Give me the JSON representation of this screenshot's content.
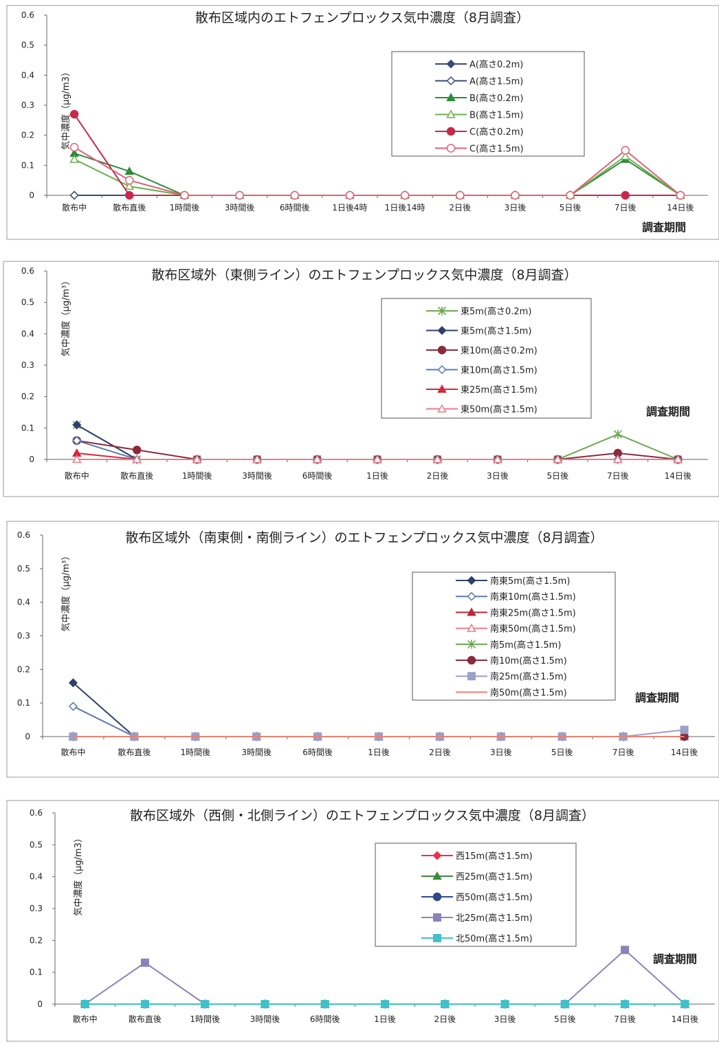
{
  "chart_data": [
    {
      "type": "line",
      "title": "散布区域内のエトフェンプロックス気中濃度（8月調査）",
      "ylabel": "気中濃度（μg/m3）",
      "xlabel": "調査期間",
      "ylim": [
        0,
        0.6
      ],
      "yticks": [
        "0",
        "0.1",
        "0.2",
        "0.3",
        "0.4",
        "0.5",
        "0.6"
      ],
      "categories": [
        "散布中",
        "散布直後",
        "1時間後",
        "3時間後",
        "6時間後",
        "1日後4時",
        "1日後14時",
        "2日後",
        "3日後",
        "5日後",
        "7日後",
        "14日後"
      ],
      "legend": "upper-right box",
      "series": [
        {
          "name": "A(高さ0.2m)",
          "color": "#3a4a7a",
          "marker": "diamond-filled",
          "values": [
            0,
            0,
            0,
            0,
            0,
            0,
            0,
            0,
            0,
            0,
            0,
            0
          ]
        },
        {
          "name": "A(高さ1.5m)",
          "color": "#3a4a7a",
          "marker": "diamond-open",
          "values": [
            0,
            0,
            0,
            0,
            0,
            0,
            0,
            0,
            0,
            0,
            0,
            0
          ]
        },
        {
          "name": "B(高さ0.2m)",
          "color": "#2e8b3a",
          "marker": "triangle-filled",
          "values": [
            0.14,
            0.08,
            0,
            0,
            0,
            0,
            0,
            0,
            0,
            0,
            0.12,
            0
          ]
        },
        {
          "name": "B(高さ1.5m)",
          "color": "#6ab04c",
          "marker": "triangle-open",
          "values": [
            0.12,
            0.03,
            0,
            0,
            0,
            0,
            0,
            0,
            0,
            0,
            0.13,
            0
          ]
        },
        {
          "name": "C(高さ0.2m)",
          "color": "#c8284a",
          "marker": "circle-filled",
          "values": [
            0.27,
            0,
            0,
            0,
            0,
            0,
            0,
            0,
            0,
            0,
            0,
            0
          ]
        },
        {
          "name": "C(高さ1.5m)",
          "color": "#e06078",
          "marker": "circle-open",
          "values": [
            0.16,
            0.05,
            0,
            0,
            0,
            0,
            0,
            0,
            0,
            0,
            0.15,
            0
          ]
        }
      ]
    },
    {
      "type": "line",
      "title": "散布区域外（東側ライン）のエトフェンプロックス気中濃度（8月調査）",
      "ylabel": "気中濃度（μg/m³）",
      "xlabel": "調査期間",
      "ylim": [
        0,
        0.6
      ],
      "yticks": [
        "0",
        "0.1",
        "0.2",
        "0.3",
        "0.4",
        "0.5",
        "0.6"
      ],
      "categories": [
        "散布中",
        "散布直後",
        "1時間後",
        "3時間後",
        "6時間後",
        "1日後",
        "2日後",
        "3日後",
        "5日後",
        "7日後",
        "14日後"
      ],
      "legend": "upper-right box",
      "series": [
        {
          "name": "東5m(高さ0.2m)",
          "color": "#6aa84f",
          "marker": "star",
          "values": [
            0.11,
            0,
            0,
            0,
            0,
            0,
            0,
            0,
            0,
            0.08,
            0
          ]
        },
        {
          "name": "東5m(高さ1.5m)",
          "color": "#2f3f6a",
          "marker": "diamond-filled",
          "values": [
            0.11,
            0,
            0,
            0,
            0,
            0,
            0,
            0,
            0,
            0,
            0
          ]
        },
        {
          "name": "東10m(高さ0.2m)",
          "color": "#8a2a3a",
          "marker": "circle-filled",
          "values": [
            0.06,
            0.03,
            0,
            0,
            0,
            0,
            0,
            0,
            0,
            0.02,
            0
          ]
        },
        {
          "name": "東10m(高さ1.5m)",
          "color": "#5a78b0",
          "marker": "diamond-open",
          "values": [
            0.06,
            0,
            0,
            0,
            0,
            0,
            0,
            0,
            0,
            0,
            0
          ]
        },
        {
          "name": "東25m(高さ1.5m)",
          "color": "#d8263c",
          "marker": "triangle-filled",
          "values": [
            0.02,
            0,
            0,
            0,
            0,
            0,
            0,
            0,
            0,
            0,
            0
          ]
        },
        {
          "name": "東50m(高さ1.5m)",
          "color": "#ee7a8c",
          "marker": "triangle-open",
          "values": [
            0,
            0,
            0,
            0,
            0,
            0,
            0,
            0,
            0,
            0,
            0
          ]
        }
      ]
    },
    {
      "type": "line",
      "title": "散布区域外（南東側・南側ライン）のエトフェンプロックス気中濃度（8月調査）",
      "ylabel": "気中濃度（μg/m³）",
      "xlabel": "調査期間",
      "ylim": [
        0,
        0.6
      ],
      "yticks": [
        "0",
        "0.1",
        "0.2",
        "0.3",
        "0.4",
        "0.5",
        "0.6"
      ],
      "categories": [
        "散布中",
        "散布直後",
        "1時間後",
        "3時間後",
        "6時間後",
        "1日後",
        "2日後",
        "3日後",
        "5日後",
        "7日後",
        "14日後"
      ],
      "legend": "right box",
      "series": [
        {
          "name": "南東5m(高さ1.5m)",
          "color": "#2f3f6a",
          "marker": "diamond-filled",
          "values": [
            0.16,
            0,
            0,
            0,
            0,
            0,
            0,
            0,
            0,
            0,
            0
          ]
        },
        {
          "name": "南東10m(高さ1.5m)",
          "color": "#5a78b0",
          "marker": "diamond-open",
          "values": [
            0.09,
            0,
            0,
            0,
            0,
            0,
            0,
            0,
            0,
            0,
            0
          ]
        },
        {
          "name": "南東25m(高さ1.5m)",
          "color": "#b8283a",
          "marker": "triangle-filled",
          "values": [
            0,
            0,
            0,
            0,
            0,
            0,
            0,
            0,
            0,
            0,
            0
          ]
        },
        {
          "name": "南東50m(高さ1.5m)",
          "color": "#ee7a8c",
          "marker": "triangle-open",
          "values": [
            0,
            0,
            0,
            0,
            0,
            0,
            0,
            0,
            0,
            0,
            0
          ]
        },
        {
          "name": "南5m(高さ1.5m)",
          "color": "#6aa84f",
          "marker": "star",
          "values": [
            0,
            0,
            0,
            0,
            0,
            0,
            0,
            0,
            0,
            0,
            0
          ]
        },
        {
          "name": "南10m(高さ1.5m)",
          "color": "#8a2a3a",
          "marker": "circle-filled",
          "values": [
            0,
            0,
            0,
            0,
            0,
            0,
            0,
            0,
            0,
            0,
            0
          ]
        },
        {
          "name": "南25m(高さ1.5m)",
          "color": "#9aa0c8",
          "marker": "square",
          "values": [
            0,
            0,
            0,
            0,
            0,
            0,
            0,
            0,
            0,
            0,
            0.02
          ]
        },
        {
          "name": "南50m(高さ1.5m)",
          "color": "#f08070",
          "marker": "none",
          "values": [
            0,
            0,
            0,
            0,
            0,
            0,
            0,
            0,
            0,
            0,
            0
          ]
        }
      ]
    },
    {
      "type": "line",
      "title": "散布区域外（西側・北側ライン）のエトフェンプロックス気中濃度（8月調査）",
      "ylabel": "気中濃度（μg/m3）",
      "xlabel": "調査期間",
      "ylim": [
        0,
        0.6
      ],
      "yticks": [
        "0",
        "0.1",
        "0.2",
        "0.3",
        "0.4",
        "0.5",
        "0.6"
      ],
      "categories": [
        "散布中",
        "散布直後",
        "1時間後",
        "3時間後",
        "6時間後",
        "1日後",
        "2日後",
        "3日後",
        "5日後",
        "7日後",
        "14日後"
      ],
      "legend": "center-right box",
      "series": [
        {
          "name": "西15m(高さ1.5m)",
          "color": "#e83050",
          "marker": "diamond-filled",
          "values": [
            0,
            0,
            0,
            0,
            0,
            0,
            0,
            0,
            0,
            0,
            0
          ]
        },
        {
          "name": "西25m(高さ1.5m)",
          "color": "#3a8a3a",
          "marker": "triangle-filled",
          "values": [
            0,
            0,
            0,
            0,
            0,
            0,
            0,
            0,
            0,
            0,
            0
          ]
        },
        {
          "name": "西50m(高さ1.5m)",
          "color": "#2f4a8a",
          "marker": "circle-filled",
          "values": [
            0,
            0,
            0,
            0,
            0,
            0,
            0,
            0,
            0,
            0,
            0
          ]
        },
        {
          "name": "北25m(高さ1.5m)",
          "color": "#8a84b8",
          "marker": "square",
          "values": [
            0,
            0.13,
            0,
            0,
            0,
            0,
            0,
            0,
            0,
            0.17,
            0
          ]
        },
        {
          "name": "北50m(高さ1.5m)",
          "color": "#40c0c8",
          "marker": "square",
          "values": [
            0,
            0,
            0,
            0,
            0,
            0,
            0,
            0,
            0,
            0,
            0
          ]
        }
      ]
    }
  ]
}
